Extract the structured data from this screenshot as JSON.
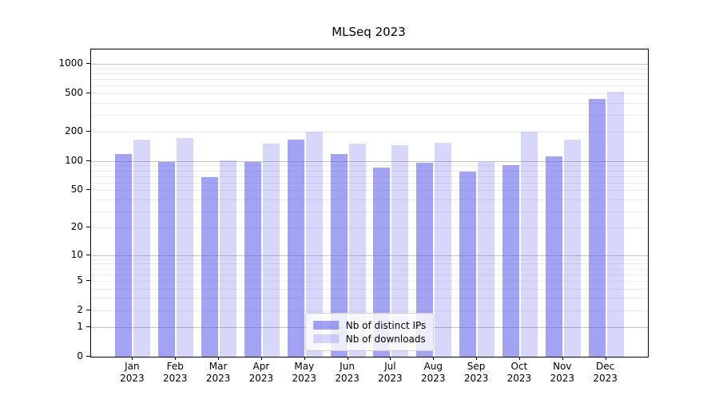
{
  "title": "MLSeq 2023",
  "chart_data": {
    "type": "bar",
    "title": "MLSeq 2023",
    "year": "2023",
    "categories": [
      "Jan",
      "Feb",
      "Mar",
      "Apr",
      "May",
      "Jun",
      "Jul",
      "Aug",
      "Sep",
      "Oct",
      "Nov",
      "Dec"
    ],
    "series": [
      {
        "name": "Nb of distinct IPs",
        "color": "rgba(87,87,234,0.55)",
        "values": [
          118,
          97,
          68,
          97,
          165,
          119,
          85,
          95,
          78,
          91,
          111,
          432
        ]
      },
      {
        "name": "Nb of downloads",
        "color": "rgba(87,87,234,0.24)",
        "values": [
          165,
          172,
          102,
          150,
          200,
          152,
          146,
          155,
          98,
          200,
          167,
          512
        ]
      }
    ],
    "yscale": "log1p",
    "ymax": 1400,
    "yticks": [
      1000,
      500,
      200,
      100,
      50,
      20,
      10,
      5,
      2,
      1,
      0
    ],
    "major_grid_values": [
      1,
      10,
      100,
      1000
    ],
    "grid": true,
    "legend_position": "lower center",
    "colors": {
      "bar_base": "#5757ea",
      "major_grid": "#c4c4c4",
      "minor_grid": "#ededed",
      "axis": "#000000",
      "legend_border": "#cccccc"
    }
  }
}
